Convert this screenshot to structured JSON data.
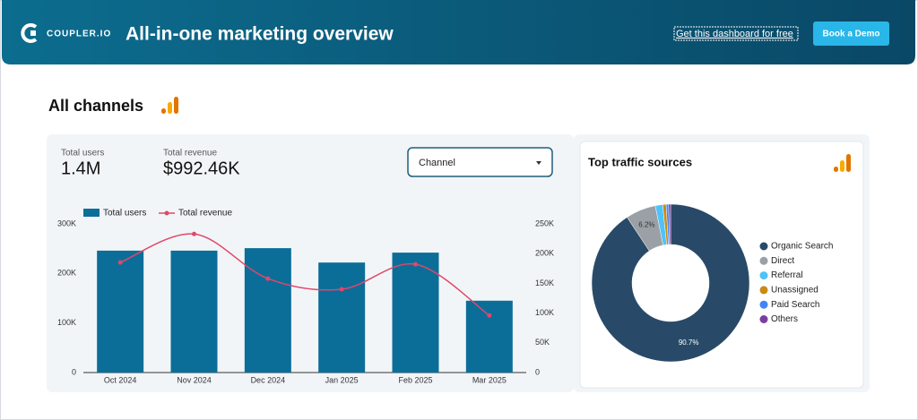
{
  "header": {
    "brand": "COUPLER.IO",
    "title": "All-in-one marketing overview",
    "link": "Get this dashboard for free",
    "button": "Book a Demo"
  },
  "section_title": "All channels",
  "kpis": [
    {
      "label": "Total users",
      "value": "1.4M"
    },
    {
      "label": "Total revenue",
      "value": "$992.46K"
    }
  ],
  "filter": {
    "label": "Channel"
  },
  "chart_data": [
    {
      "type": "bar-line",
      "categories": [
        "Oct 2024",
        "Nov 2024",
        "Dec 2024",
        "Jan 2025",
        "Feb 2025",
        "Mar 2025"
      ],
      "series": [
        {
          "name": "Total users",
          "type": "bar",
          "color": "#0b6e99",
          "values": [
            246000,
            246000,
            251000,
            222000,
            242000,
            145000
          ]
        },
        {
          "name": "Total revenue",
          "type": "line",
          "axis": "y2",
          "color": "#e0476a",
          "values": [
            185000,
            233000,
            158000,
            140000,
            182000,
            96000
          ]
        }
      ],
      "ylim": [
        0,
        300000
      ],
      "yticks": [
        0,
        {
          "value": 100000,
          "label": "100K"
        },
        {
          "value": 200000,
          "label": "200K"
        },
        {
          "value": 300000,
          "label": "300K"
        }
      ],
      "y2lim": [
        0,
        250000
      ],
      "y2ticks": [
        0,
        {
          "value": 50000,
          "label": "50K"
        },
        {
          "value": 100000,
          "label": "100K"
        },
        {
          "value": 150000,
          "label": "150K"
        },
        {
          "value": 200000,
          "label": "200K"
        },
        {
          "value": 250000,
          "label": "250K"
        }
      ],
      "legend": "top-left"
    },
    {
      "type": "donut",
      "title": "Top traffic sources",
      "categories": [
        "Organic Search",
        "Direct",
        "Referral",
        "Unassigned",
        "Paid Search",
        "Others"
      ],
      "values": [
        90.7,
        6.2,
        1.5,
        0.7,
        0.5,
        0.4
      ],
      "value_labels": [
        "90.7%",
        "6.2%",
        null,
        null,
        null,
        null
      ],
      "colors": [
        "#284a68",
        "#9aa0a6",
        "#4fc3f7",
        "#c98a16",
        "#4285f4",
        "#7b3fa0"
      ],
      "legend": "right"
    }
  ]
}
